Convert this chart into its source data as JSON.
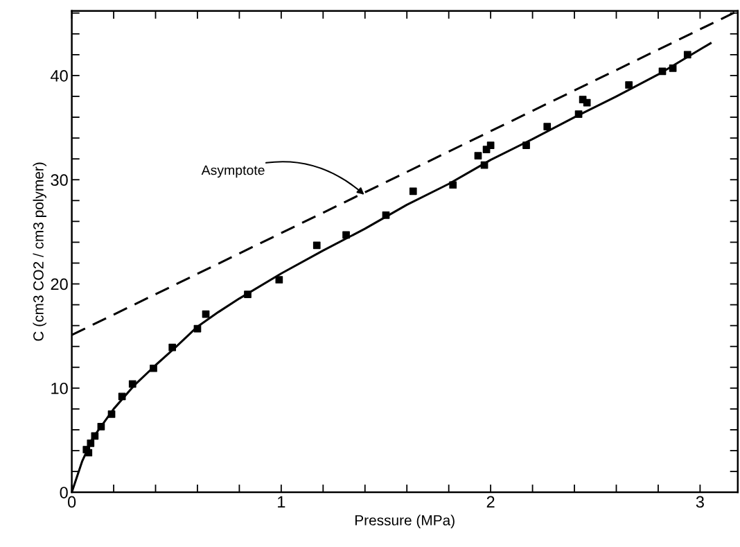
{
  "chart_data": {
    "type": "scatter",
    "xlabel": "Pressure (MPa)",
    "ylabel": "C (cm3 CO2 / cm3 polymer)",
    "xlim": [
      0,
      3.18
    ],
    "ylim": [
      0,
      46.2
    ],
    "xticks": [
      0,
      {
        "value": 0.2,
        "label": null
      },
      {
        "value": 0.4,
        "label": null
      },
      {
        "value": 0.6,
        "label": null
      },
      {
        "value": 0.8,
        "label": null
      },
      1,
      {
        "value": 1.2,
        "label": null
      },
      {
        "value": 1.4,
        "label": null
      },
      {
        "value": 1.6,
        "label": null
      },
      {
        "value": 1.8,
        "label": null
      },
      2,
      {
        "value": 2.2,
        "label": null
      },
      {
        "value": 2.4,
        "label": null
      },
      {
        "value": 2.6,
        "label": null
      },
      {
        "value": 2.8,
        "label": null
      },
      3
    ],
    "yticks": [
      0,
      {
        "value": 2,
        "label": null
      },
      {
        "value": 4,
        "label": null
      },
      {
        "value": 6,
        "label": null
      },
      {
        "value": 8,
        "label": null
      },
      10,
      {
        "value": 12,
        "label": null
      },
      {
        "value": 14,
        "label": null
      },
      {
        "value": 16,
        "label": null
      },
      {
        "value": 18,
        "label": null
      },
      20,
      {
        "value": 22,
        "label": null
      },
      {
        "value": 24,
        "label": null
      },
      {
        "value": 26,
        "label": null
      },
      {
        "value": 28,
        "label": null
      },
      30,
      {
        "value": 32,
        "label": null
      },
      {
        "value": 34,
        "label": null
      },
      {
        "value": 36,
        "label": null
      },
      {
        "value": 38,
        "label": null
      },
      40,
      {
        "value": 42,
        "label": null
      },
      {
        "value": 44,
        "label": null
      },
      {
        "value": 46,
        "label": null
      }
    ],
    "grid": false,
    "legend": false,
    "series": [
      {
        "color": "#000000",
        "marker": "square",
        "x": [
          0.07,
          0.08,
          0.09,
          0.11,
          0.14,
          0.19,
          0.24,
          0.29,
          0.39,
          0.48,
          0.6,
          0.64,
          0.84,
          0.99,
          1.17,
          1.31,
          1.5,
          1.63,
          1.82,
          1.94,
          1.97,
          1.98,
          2.0,
          2.17,
          2.27,
          2.42,
          2.44,
          2.46,
          2.66,
          2.82,
          2.87,
          2.94
        ],
        "values": [
          4.1,
          3.8,
          4.7,
          5.4,
          6.3,
          7.5,
          9.2,
          10.4,
          11.9,
          13.9,
          15.7,
          17.1,
          19.0,
          20.4,
          23.7,
          24.7,
          26.6,
          28.9,
          29.5,
          32.3,
          31.4,
          32.9,
          33.3,
          33.3,
          35.1,
          36.3,
          37.7,
          37.4,
          39.1,
          40.4,
          40.7,
          42.0
        ]
      },
      {
        "type": "line",
        "color": "#000000",
        "line_style": "solid",
        "marker": "none",
        "x": [
          0,
          0.05,
          0.1,
          0.2,
          0.3,
          0.4,
          0.5,
          0.6,
          0.7,
          0.8,
          1.0,
          1.2,
          1.4,
          1.6,
          1.8,
          2.0,
          2.2,
          2.4,
          2.6,
          2.8,
          3.05
        ],
        "values": [
          0,
          3,
          5.2,
          8,
          10.3,
          12.2,
          14,
          15.9,
          17.3,
          18.6,
          21,
          23.2,
          25.3,
          27.6,
          29.6,
          31.9,
          33.9,
          36,
          38,
          40.1,
          43.1
        ]
      },
      {
        "type": "line",
        "color": "#000000",
        "line_style": "dashed",
        "marker": "none",
        "x": [
          0,
          3.18
        ],
        "values": [
          15.1,
          46.2
        ]
      }
    ],
    "annotations": [
      {
        "text": "Asymptote",
        "x": 1.4,
        "y": 28.5
      }
    ]
  }
}
